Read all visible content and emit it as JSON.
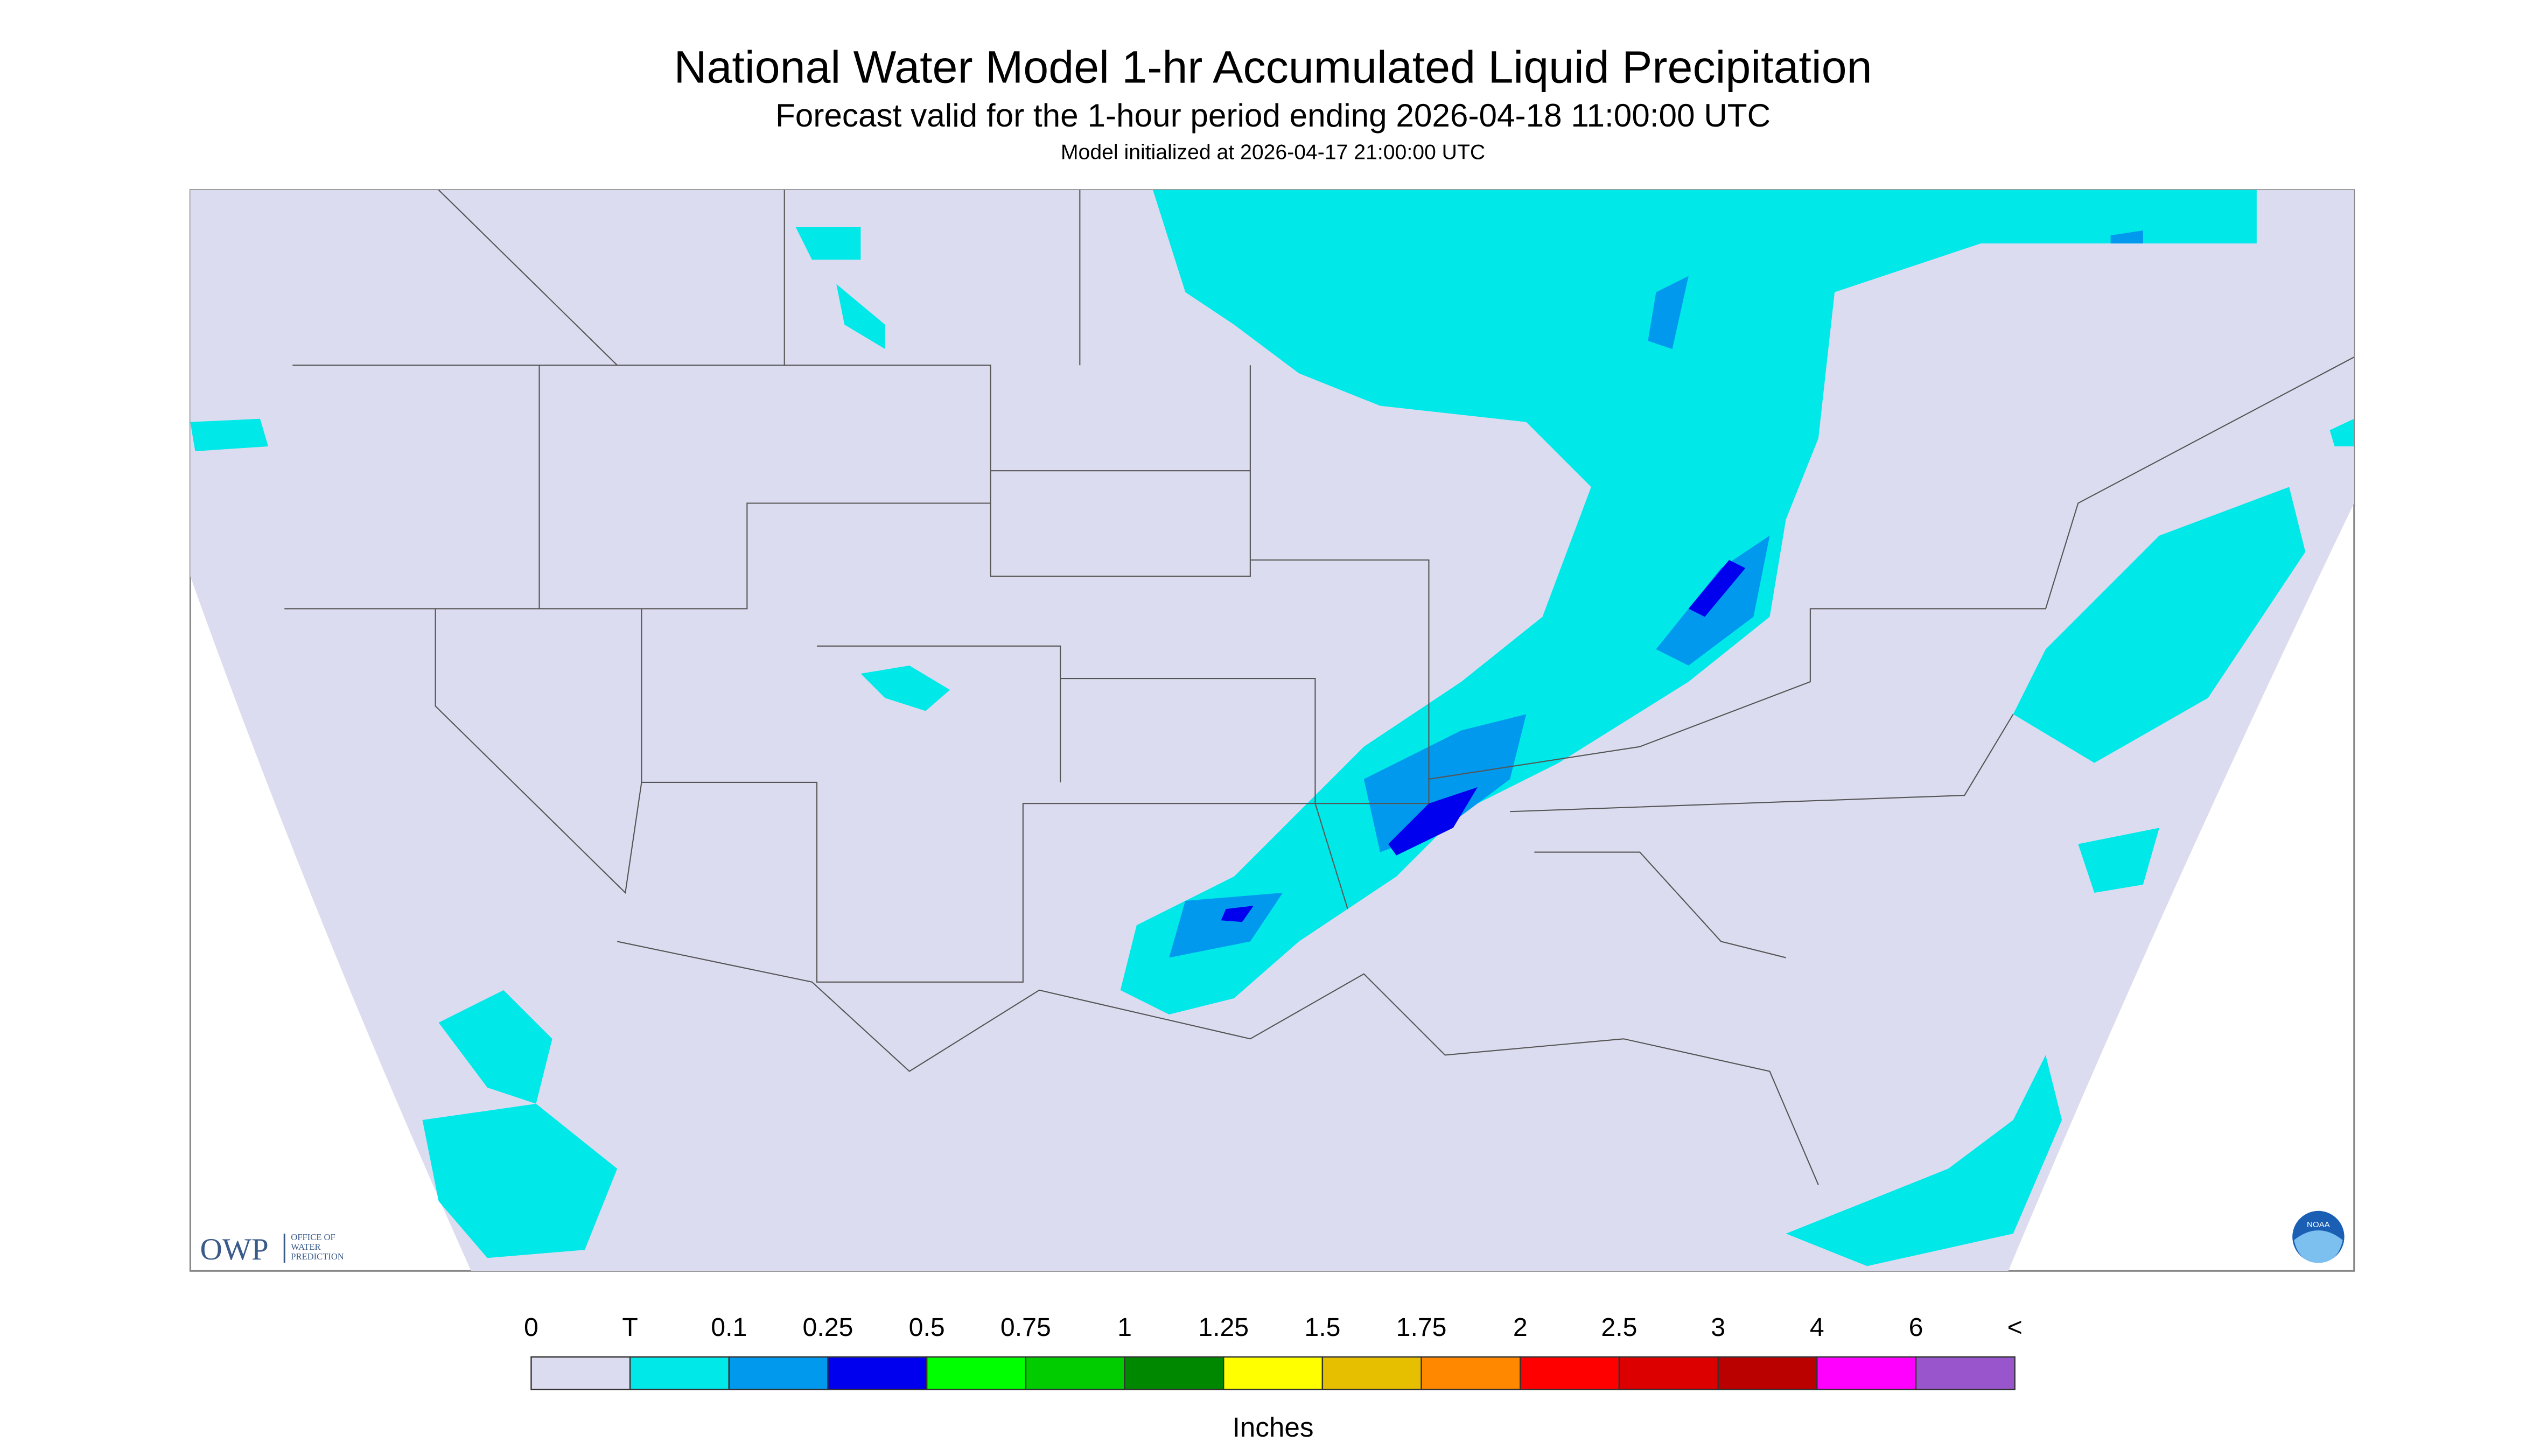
{
  "header": {
    "title": "National Water Model 1-hr Accumulated Liquid Precipitation",
    "subtitle": "Forecast valid for the 1-hour period ending 2026-04-18 11:00:00 UTC",
    "initialized": "Model initialized at 2026-04-17 21:00:00 UTC"
  },
  "legend": {
    "labels": [
      "0",
      "T",
      "0.1",
      "0.25",
      "0.5",
      "0.75",
      "1",
      "1.25",
      "1.5",
      "1.75",
      "2",
      "2.5",
      "3",
      "4",
      "6",
      "<"
    ],
    "colors": [
      "#dcdcf0",
      "#00e8e8",
      "#0099ee",
      "#0000ee",
      "#00ff00",
      "#00cc00",
      "#008800",
      "#ffff00",
      "#e6c000",
      "#ff8800",
      "#ff0000",
      "#dd0000",
      "#bb0000",
      "#ff00ff",
      "#9955cc"
    ],
    "unit": "Inches"
  },
  "logos": {
    "owp": "OWP",
    "owp_name": [
      "OFFICE OF",
      "WATER",
      "PREDICTION"
    ],
    "noaa": "NOAA"
  }
}
